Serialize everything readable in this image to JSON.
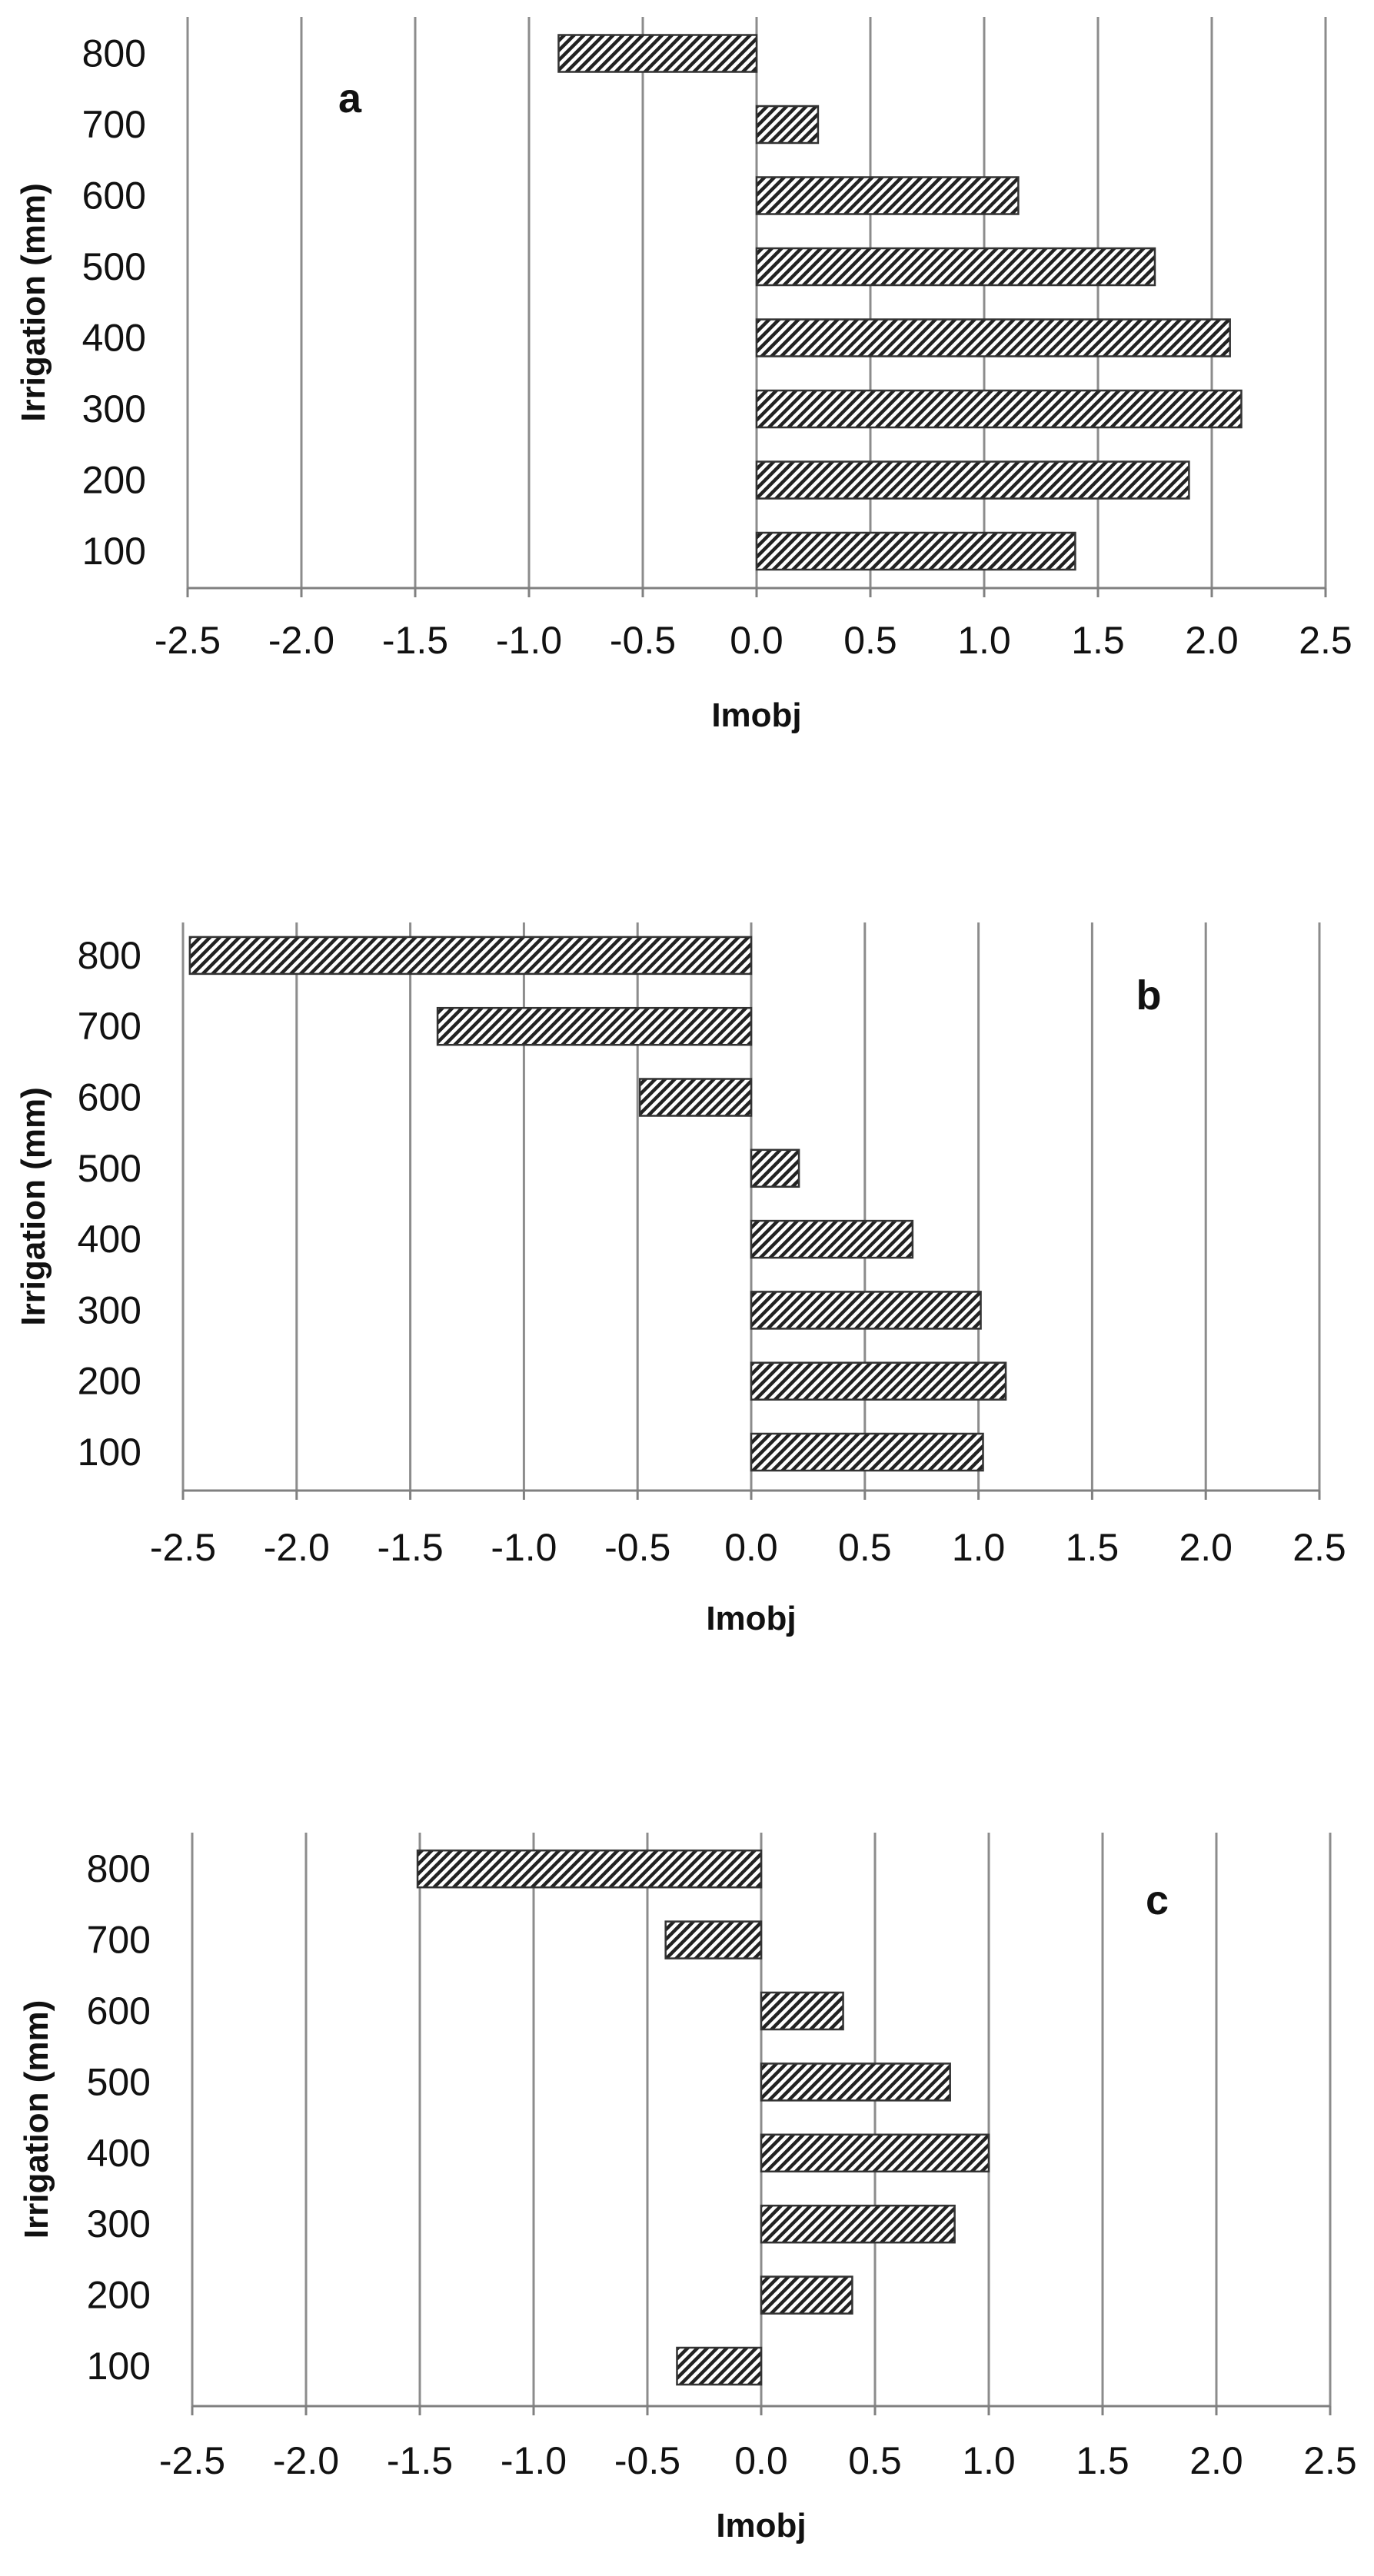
{
  "chart_data": [
    {
      "type": "bar",
      "orientation": "horizontal",
      "panel_label": "a",
      "categories": [
        "100",
        "200",
        "300",
        "400",
        "500",
        "600",
        "700",
        "800"
      ],
      "values": [
        1.4,
        1.9,
        2.13,
        2.08,
        1.75,
        1.15,
        0.27,
        -0.87
      ],
      "xlabel": "Imobj",
      "ylabel": "Irrigation (mm)",
      "xlim": [
        -2.5,
        2.5
      ],
      "xticks": [
        "-2.5",
        "-2.0",
        "-1.5",
        "-1.0",
        "-0.5",
        "0.0",
        "0.5",
        "1.0",
        "1.5",
        "2.0",
        "2.5"
      ],
      "grid": "vertical",
      "bar_fill": "diagonal hatch"
    },
    {
      "type": "bar",
      "orientation": "horizontal",
      "panel_label": "b",
      "categories": [
        "100",
        "200",
        "300",
        "400",
        "500",
        "600",
        "700",
        "800"
      ],
      "values": [
        1.02,
        1.12,
        1.01,
        0.71,
        0.21,
        -0.49,
        -1.38,
        -2.47
      ],
      "xlabel": "Imobj",
      "ylabel": "Irrigation (mm)",
      "xlim": [
        -2.5,
        2.5
      ],
      "xticks": [
        "-2.5",
        "-2.0",
        "-1.5",
        "-1.0",
        "-0.5",
        "0.0",
        "0.5",
        "1.0",
        "1.5",
        "2.0",
        "2.5"
      ],
      "grid": "vertical",
      "bar_fill": "diagonal hatch"
    },
    {
      "type": "bar",
      "orientation": "horizontal",
      "panel_label": "c",
      "categories": [
        "100",
        "200",
        "300",
        "400",
        "500",
        "600",
        "700",
        "800"
      ],
      "values": [
        -0.37,
        0.4,
        0.85,
        1.0,
        0.83,
        0.36,
        -0.42,
        -1.51
      ],
      "xlabel": "Imobj",
      "ylabel": "Irrigation (mm)",
      "xlim": [
        -2.5,
        2.5
      ],
      "xticks": [
        "-2.5",
        "-2.0",
        "-1.5",
        "-1.0",
        "-0.5",
        "0.0",
        "0.5",
        "1.0",
        "1.5",
        "2.0",
        "2.5"
      ],
      "grid": "vertical",
      "bar_fill": "diagonal hatch"
    }
  ],
  "colors": {
    "gridline": "#8c8c8c",
    "axis": "#808080",
    "bar_stroke": "#333333",
    "hatch": "#222222",
    "text": "#111111",
    "background": "#ffffff"
  }
}
